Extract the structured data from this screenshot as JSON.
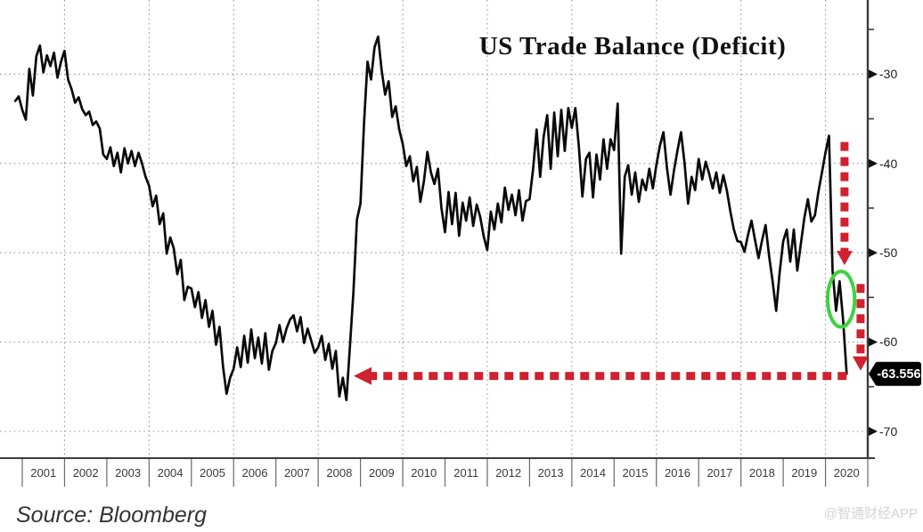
{
  "title_note": "zerohedge/Bloomberg style chart",
  "source_text": "Source: Bloomberg",
  "watermark": "@智通财经APP",
  "colors": {
    "line": "#0a0a0a",
    "grid": "#999999",
    "axis": "#3c3c3c",
    "red": "#cf2130",
    "green": "#3ed23e",
    "tag_bg": "#000000",
    "tag_text": "#ffffff",
    "tick_label": "#1d1d1d",
    "year_label": "#3a3a3a"
  },
  "chart_data": {
    "type": "line",
    "title": "US Trade Balance (Deficit)",
    "xlabel": "",
    "ylabel": "",
    "x_labels": [
      "2001",
      "2002",
      "2003",
      "2004",
      "2005",
      "2006",
      "2007",
      "2008",
      "2009",
      "2010",
      "2011",
      "2012",
      "2013",
      "2014",
      "2015",
      "2016",
      "2017",
      "2018",
      "2019",
      "2020"
    ],
    "x_grid_years": [
      2002,
      2004,
      2006,
      2008,
      2010,
      2012,
      2014,
      2016,
      2018,
      2020
    ],
    "y_ticks": [
      -30,
      -40,
      -50,
      -60,
      -70
    ],
    "y_minor_ticks": [
      -25,
      -35,
      -45,
      -55,
      -65
    ],
    "y_grid": [
      -30,
      -40,
      -50,
      -60,
      -70
    ],
    "ylim": [
      -73,
      -21.7
    ],
    "grid": "dotted",
    "legend": "none",
    "frequency": "monthly",
    "x_start": 2000.8333,
    "last_value": -63.556,
    "last_value_label": "-63.556",
    "series": [
      {
        "name": "US Trade Balance",
        "values": [
          -33.0,
          -32.5,
          -34.0,
          -35.1,
          -29.4,
          -32.4,
          -28.0,
          -26.8,
          -29.8,
          -27.9,
          -29.1,
          -27.6,
          -30.4,
          -28.6,
          -27.4,
          -30.6,
          -31.7,
          -33.2,
          -32.6,
          -33.9,
          -34.6,
          -34.2,
          -35.7,
          -35.3,
          -36.1,
          -39.0,
          -39.5,
          -38.2,
          -40.3,
          -38.8,
          -41.0,
          -38.3,
          -40.0,
          -38.6,
          -40.3,
          -38.8,
          -40.0,
          -41.5,
          -42.5,
          -44.8,
          -43.6,
          -46.8,
          -45.6,
          -50.1,
          -48.3,
          -49.5,
          -52.4,
          -50.8,
          -55.3,
          -53.8,
          -54.0,
          -56.1,
          -54.4,
          -57.3,
          -55.3,
          -58.3,
          -56.5,
          -60.3,
          -58.3,
          -62.8,
          -65.8,
          -64.0,
          -63.0,
          -60.6,
          -62.8,
          -59.3,
          -62.3,
          -58.6,
          -61.8,
          -59.5,
          -62.4,
          -59.0,
          -63.1,
          -61.0,
          -60.1,
          -58.1,
          -60.0,
          -58.5,
          -57.5,
          -57.0,
          -58.8,
          -57.2,
          -60.1,
          -58.5,
          -59.8,
          -61.2,
          -60.6,
          -59.3,
          -62.0,
          -60.2,
          -63.0,
          -61.0,
          -66.1,
          -64.0,
          -66.5,
          -60.6,
          -54.4,
          -46.3,
          -44.5,
          -35.5,
          -28.6,
          -30.6,
          -27.0,
          -25.8,
          -29.5,
          -32.3,
          -30.8,
          -34.8,
          -33.6,
          -36.2,
          -37.8,
          -40.3,
          -39.2,
          -42.0,
          -40.4,
          -44.3,
          -42.0,
          -38.7,
          -41.0,
          -42.3,
          -40.6,
          -45.0,
          -47.7,
          -43.2,
          -46.8,
          -43.3,
          -48.1,
          -44.4,
          -46.4,
          -43.8,
          -47.0,
          -44.6,
          -46.0,
          -48.2,
          -49.7,
          -45.4,
          -47.4,
          -44.5,
          -46.6,
          -42.7,
          -45.2,
          -43.5,
          -45.8,
          -43.0,
          -46.4,
          -44.2,
          -44.0,
          -40.6,
          -36.2,
          -41.5,
          -37.0,
          -34.6,
          -40.6,
          -34.3,
          -39.2,
          -34.0,
          -38.6,
          -33.8,
          -36.0,
          -33.8,
          -38.2,
          -43.7,
          -39.5,
          -38.8,
          -43.8,
          -39.0,
          -41.8,
          -37.3,
          -40.6,
          -37.3,
          -38.5,
          -33.3,
          -50.1,
          -41.5,
          -40.2,
          -43.5,
          -41.0,
          -44.3,
          -41.8,
          -43.0,
          -40.6,
          -42.8,
          -40.2,
          -38.0,
          -36.5,
          -40.5,
          -43.5,
          -40.8,
          -38.5,
          -36.5,
          -40.0,
          -44.5,
          -41.5,
          -43.0,
          -39.5,
          -41.8,
          -39.8,
          -41.2,
          -42.8,
          -41.0,
          -43.3,
          -41.3,
          -43.0,
          -45.4,
          -47.4,
          -48.7,
          -48.8,
          -49.9,
          -48.0,
          -46.4,
          -48.6,
          -50.6,
          -48.6,
          -46.9,
          -50.4,
          -53.2,
          -56.5,
          -52.2,
          -48.7,
          -47.4,
          -51.0,
          -47.4,
          -52.0,
          -49.0,
          -46.1,
          -44.0,
          -46.5,
          -45.8,
          -43.2,
          -41.0,
          -38.8,
          -36.9,
          -52.0,
          -56.5,
          -53.2,
          -57.5,
          -63.556
        ]
      }
    ],
    "annotations": [
      {
        "id": "drop-arrow-upper",
        "type": "arrow",
        "direction": "down",
        "x_year": 2020.45,
        "value_from": -37.6,
        "value_to": -51.4,
        "color": "red"
      },
      {
        "id": "drop-arrow-lower",
        "type": "arrow",
        "direction": "down",
        "x_year": 2020.83,
        "value_from": -53.5,
        "value_to": -63.2,
        "color": "red"
      },
      {
        "id": "level-match-arrow",
        "type": "arrow",
        "direction": "left",
        "value": -63.8,
        "x_year_from": 2020.5,
        "x_year_to": 2008.84,
        "color": "red"
      },
      {
        "id": "covid-dip-ellipse",
        "type": "ellipse",
        "x_year": 2020.37,
        "value": -55.2,
        "rx_years": 0.32,
        "ry_units": 3.1,
        "color": "green"
      }
    ]
  }
}
